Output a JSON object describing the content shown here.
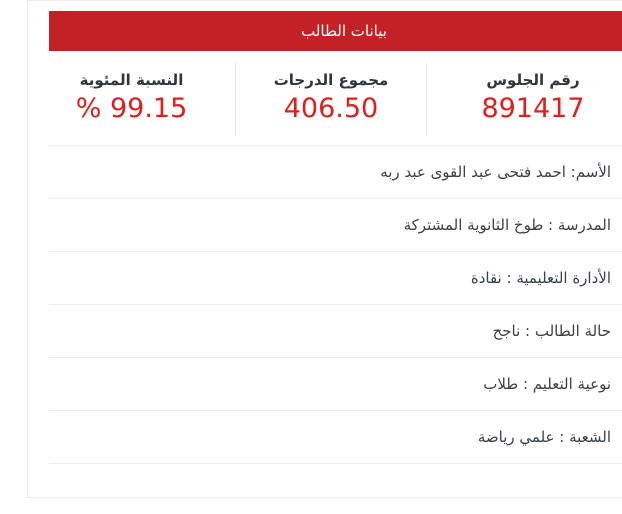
{
  "header": {
    "title": "بيانات الطالب"
  },
  "stats": [
    {
      "label": "رقم الجلوس",
      "value": "891417"
    },
    {
      "label": "مجموع الدرجات",
      "value": "406.50"
    },
    {
      "label": "النسبة المئوية",
      "value": "% 99.15"
    }
  ],
  "rows": [
    {
      "text": "الأسم: احمد فتحى عبد القوى عبد ربه"
    },
    {
      "text": "المدرسة : طوخ الثانوية المشتركة"
    },
    {
      "text": "الأدارة التعليمية : نقادة"
    },
    {
      "text": "حالة الطالب : ناجح"
    },
    {
      "text": "نوعية التعليم : طلاب"
    },
    {
      "text": "الشعبة : علمي رياضة"
    }
  ],
  "colors": {
    "header_red": "#c32126",
    "value_red": "#e01e1e"
  }
}
